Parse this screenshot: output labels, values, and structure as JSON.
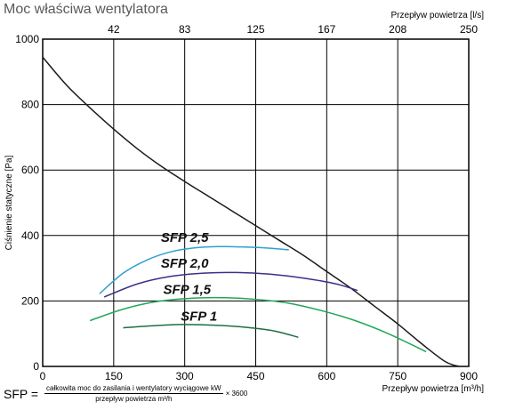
{
  "chart_data": {
    "type": "line",
    "title": "Moc właściwa wentylatora",
    "ylabel": "Ciśnienie statyczne [Pa]",
    "xlabel_bottom": "Przepływ powietrza [m³/h]",
    "xlabel_top": "Przepływ powietrza [l/s]",
    "xlim": [
      0,
      900
    ],
    "ylim": [
      0,
      1000
    ],
    "x_ticks": [
      "0",
      "150",
      "300",
      "450",
      "600",
      "750",
      "900"
    ],
    "x_tick_values": [
      0,
      150,
      300,
      450,
      600,
      750,
      900
    ],
    "y_ticks": [
      "0",
      "200",
      "400",
      "600",
      "800",
      "1000"
    ],
    "y_tick_values": [
      0,
      200,
      400,
      600,
      800,
      1000
    ],
    "x_top_ticks": [
      "42",
      "83",
      "125",
      "167",
      "208",
      "250"
    ],
    "x_top_tick_values": [
      150,
      300,
      450,
      600,
      750,
      900
    ],
    "grid": true,
    "series": [
      {
        "name": "",
        "color": "#1a1a1a",
        "x": [
          0,
          50,
          100,
          150,
          200,
          250,
          300,
          350,
          400,
          450,
          500,
          550,
          600,
          650,
          700,
          750,
          800,
          850,
          880
        ],
        "y": [
          945,
          860,
          790,
          725,
          665,
          612,
          565,
          520,
          475,
          430,
          385,
          340,
          290,
          240,
          185,
          130,
          70,
          15,
          0
        ]
      },
      {
        "name": "SFP 2,5",
        "color": "#2ea0cf",
        "x": [
          120,
          170,
          220,
          270,
          320,
          370,
          420,
          470,
          520
        ],
        "y": [
          222,
          285,
          325,
          350,
          362,
          366,
          365,
          362,
          356
        ]
      },
      {
        "name": "SFP 2,0",
        "color": "#3a2f8a",
        "x": [
          130,
          200,
          270,
          340,
          410,
          480,
          550,
          620,
          665
        ],
        "y": [
          212,
          252,
          275,
          285,
          287,
          282,
          270,
          252,
          232
        ]
      },
      {
        "name": "SFP 1,5",
        "color": "#22a65a",
        "x": [
          100,
          170,
          240,
          310,
          380,
          450,
          520,
          590,
          660,
          730,
          810
        ],
        "y": [
          140,
          175,
          198,
          208,
          210,
          205,
          193,
          170,
          140,
          100,
          45
        ]
      },
      {
        "name": "SFP 1",
        "color": "#1f6e43",
        "x": [
          170,
          230,
          290,
          340,
          390,
          440,
          490,
          540
        ],
        "y": [
          118,
          124,
          128,
          127,
          124,
          118,
          108,
          89
        ]
      }
    ],
    "sfp_labels": [
      {
        "text": "SFP 2,5",
        "x": 300,
        "y": 380
      },
      {
        "text": "SFP 2,0",
        "x": 300,
        "y": 302
      },
      {
        "text": "SFP 1,5",
        "x": 305,
        "y": 222
      },
      {
        "text": "SFP 1",
        "x": 330,
        "y": 140
      }
    ]
  },
  "formula": {
    "lhs": "SFP =",
    "numerator": "całkowita moc do zasilania i wentylatory wyciągowe kW",
    "denominator": "przepływ powietrza m³/h",
    "rhs": "× 3600"
  }
}
